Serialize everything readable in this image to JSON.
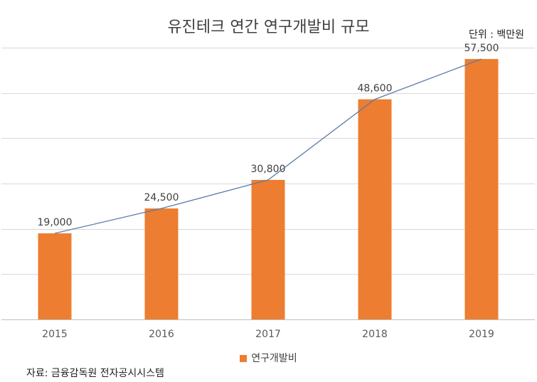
{
  "chart_data": {
    "type": "bar",
    "title": "유진테크 연간 연구개발비 규모",
    "unit_label": "단위 : 백만원",
    "categories": [
      "2015",
      "2016",
      "2017",
      "2018",
      "2019"
    ],
    "series": [
      {
        "name": "연구개발비",
        "values": [
          19000,
          24500,
          30800,
          48600,
          57500
        ],
        "color": "#ED7D31"
      }
    ],
    "data_labels": [
      "19,000",
      "24,500",
      "30,800",
      "48,600",
      "57,500"
    ],
    "trend_line": {
      "values": [
        19000,
        24500,
        30800,
        48600,
        57500
      ],
      "color": "#5B7BA6"
    },
    "ylim": [
      0,
      60000
    ],
    "grid": true,
    "legend_position": "bottom",
    "source": "자료: 금융감독원 전자공시시스템"
  }
}
